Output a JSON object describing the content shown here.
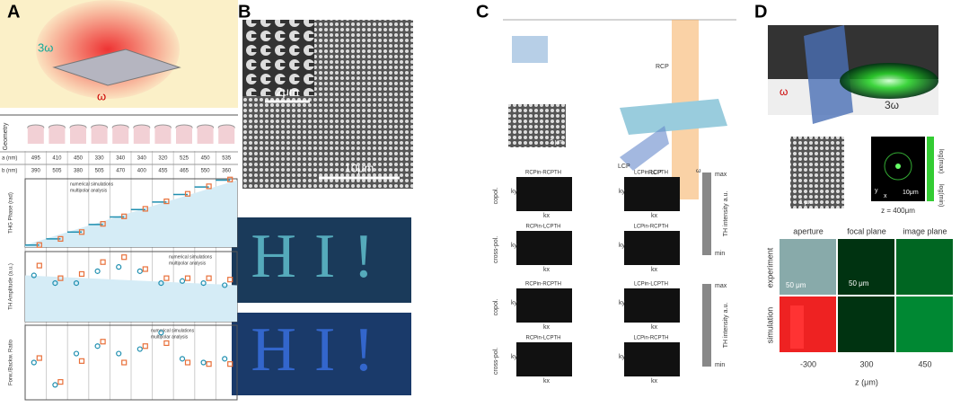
{
  "panels": [
    {
      "label": "A",
      "top_label": "3ω",
      "bottom_label": "ω",
      "geometry_label": "Geometry",
      "table": {
        "rows": [
          {
            "name": "a (nm)",
            "values": [
              495,
              410,
              450,
              330,
              340,
              340,
              320,
              525,
              450,
              535
            ]
          },
          {
            "name": "b (nm)",
            "values": [
              390,
              505,
              380,
              505,
              470,
              400,
              455,
              465,
              550,
              360
            ]
          }
        ]
      },
      "charts": [
        {
          "type": "scatter",
          "ylabel": "THG Phase (rad)",
          "ylim": [
            0,
            1
          ],
          "series": [
            {
              "name": "numerical simulations",
              "color": "#1f8fb0",
              "marker": "dash",
              "values": [
                0.03,
                0.12,
                0.22,
                0.33,
                0.44,
                0.55,
                0.66,
                0.77,
                0.88,
                0.98
              ]
            },
            {
              "name": "multipolar analysis",
              "color": "#e8703a",
              "marker": "square",
              "values": [
                0.03,
                0.12,
                0.22,
                0.34,
                0.45,
                0.56,
                0.67,
                0.78,
                0.89,
                0.99
              ]
            }
          ]
        },
        {
          "type": "scatter",
          "ylabel": "TH Amplitude (a.u.)",
          "ylim": [
            0,
            1
          ],
          "series": [
            {
              "name": "numerical simulations",
              "color": "#1f8fb0",
              "marker": "circle",
              "values": [
                0.66,
                0.55,
                0.55,
                0.72,
                0.78,
                0.72,
                0.55,
                0.58,
                0.55,
                0.52
              ]
            },
            {
              "name": "multipolar analysis",
              "color": "#e8703a",
              "marker": "square",
              "values": [
                0.8,
                0.62,
                0.68,
                0.85,
                0.92,
                0.75,
                0.62,
                0.62,
                0.62,
                0.6
              ]
            }
          ]
        },
        {
          "type": "scatter",
          "ylabel": "Forw./Backw. Ratio",
          "ylim": [
            0,
            1
          ],
          "series": [
            {
              "name": "numerical simulations",
              "color": "#1f8fb0",
              "marker": "circle",
              "values": [
                0.5,
                0.2,
                0.62,
                0.72,
                0.62,
                0.68,
                0.9,
                0.55,
                0.5,
                0.55
              ]
            },
            {
              "name": "multipolar analysis",
              "color": "#e8703a",
              "marker": "square",
              "values": [
                0.56,
                0.24,
                0.52,
                0.78,
                0.5,
                0.72,
                0.76,
                0.5,
                0.48,
                0.48
              ]
            }
          ]
        }
      ]
    },
    {
      "label": "B",
      "scale_small": "2μm",
      "scale_large": "10μm"
    },
    {
      "label": "C",
      "rcp": "RCP",
      "lcp": "LCP",
      "rcp2": "RCP",
      "omega": "ω",
      "scale": "2 μm",
      "groups": [
        {
          "rows": [
            {
              "name": "copol.",
              "images": [
                "RCPin-RCPTH",
                "LCPin-LCPTH"
              ]
            },
            {
              "name": "cross-pol.",
              "images": [
                "RCPin-LCPTH",
                "LCPin-RCPTH"
              ]
            }
          ],
          "max": "max",
          "min": "min",
          "bar_label": "TH intensity a.u."
        },
        {
          "rows": [
            {
              "name": "copol.",
              "images": [
                "RCPin-RCPTH",
                "LCPin-LCPTH"
              ]
            },
            {
              "name": "cross-pol.",
              "images": [
                "RCPin-LCPTH",
                "LCPin-RCPTH"
              ]
            }
          ],
          "max": "max",
          "min": "min",
          "bar_label": "TH intensity a.u."
        }
      ],
      "kx": "kx",
      "ky": "ky"
    },
    {
      "label": "D",
      "omega": "ω",
      "third": "3ω",
      "scale_sem": "1 μm",
      "scale_far": "10μm",
      "z_label": "z = 400μm",
      "log_max": "log(max)",
      "log_min": "log(min)",
      "y": "y",
      "x": "x",
      "columns": [
        "aperture",
        "focal plane",
        "image plane"
      ],
      "rows": [
        "experiment",
        "simulation"
      ],
      "scale_a": "50 μm",
      "scale_b": "50 μm",
      "z_ticks": [
        "-300",
        "300",
        "450"
      ],
      "z_axis": "z (μm)"
    }
  ]
}
